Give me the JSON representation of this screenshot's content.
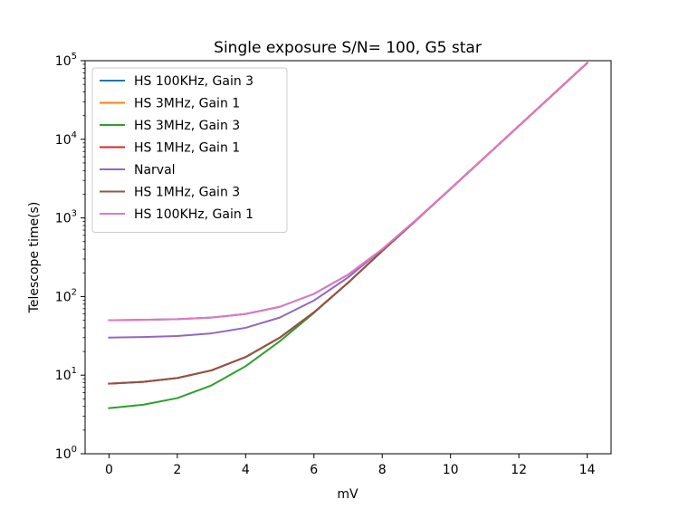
{
  "chart_data": {
    "type": "line",
    "title": "Single exposure S/N= 100, G5 star",
    "xlabel": "mV",
    "ylabel": "Telescope time(s)",
    "xlim": [
      -0.7,
      14.7
    ],
    "ylim": [
      1,
      100000
    ],
    "yscale": "log",
    "x_ticks": [
      0,
      2,
      4,
      6,
      8,
      10,
      12,
      14
    ],
    "y_ticks": [
      {
        "value": 1,
        "base": "10",
        "exp": "0"
      },
      {
        "value": 10,
        "base": "10",
        "exp": "1"
      },
      {
        "value": 100,
        "base": "10",
        "exp": "2"
      },
      {
        "value": 1000,
        "base": "10",
        "exp": "3"
      },
      {
        "value": 10000,
        "base": "10",
        "exp": "4"
      },
      {
        "value": 100000,
        "base": "10",
        "exp": "5"
      }
    ],
    "legend_position": "upper-left",
    "grid": false,
    "x": [
      0,
      1,
      2,
      3,
      4,
      5,
      6,
      7,
      8,
      9,
      10,
      11,
      12,
      13,
      14
    ],
    "series": [
      {
        "name": "HS 100KHz, Gain 3",
        "color": "#1f77b4",
        "values": [
          50,
          50.5,
          51.5,
          54,
          60,
          74,
          108,
          190,
          400,
          950,
          2350,
          5900,
          14800,
          37200,
          93500
        ]
      },
      {
        "name": "HS 3MHz, Gain 1",
        "color": "#ff7f0e",
        "values": [
          7.8,
          8.2,
          9.2,
          11.5,
          17,
          30,
          63,
          150,
          380,
          940,
          2350,
          5900,
          14800,
          37200,
          93500
        ]
      },
      {
        "name": "HS 3MHz, Gain 3",
        "color": "#2ca02c",
        "values": [
          3.8,
          4.2,
          5.1,
          7.4,
          13,
          27,
          62,
          150,
          380,
          940,
          2350,
          5900,
          14800,
          37200,
          93500
        ]
      },
      {
        "name": "HS 1MHz, Gain 1",
        "color": "#d62728",
        "values": [
          7.8,
          8.2,
          9.2,
          11.5,
          17,
          30,
          63,
          150,
          380,
          940,
          2350,
          5900,
          14800,
          37200,
          93500
        ]
      },
      {
        "name": "Narval",
        "color": "#9467bd",
        "values": [
          30,
          30.5,
          31.5,
          34,
          40,
          54,
          89,
          175,
          400,
          950,
          2350,
          5900,
          14800,
          37200,
          93500
        ]
      },
      {
        "name": "HS 1MHz, Gain 3",
        "color": "#8c564b",
        "values": [
          7.8,
          8.2,
          9.2,
          11.5,
          17,
          30,
          63,
          150,
          380,
          940,
          2350,
          5900,
          14800,
          37200,
          93500
        ]
      },
      {
        "name": "HS 100KHz, Gain 1",
        "color": "#e377c2",
        "values": [
          50,
          50.5,
          51.5,
          54,
          60,
          74,
          108,
          190,
          400,
          950,
          2350,
          5900,
          14800,
          37200,
          93500
        ]
      }
    ]
  }
}
